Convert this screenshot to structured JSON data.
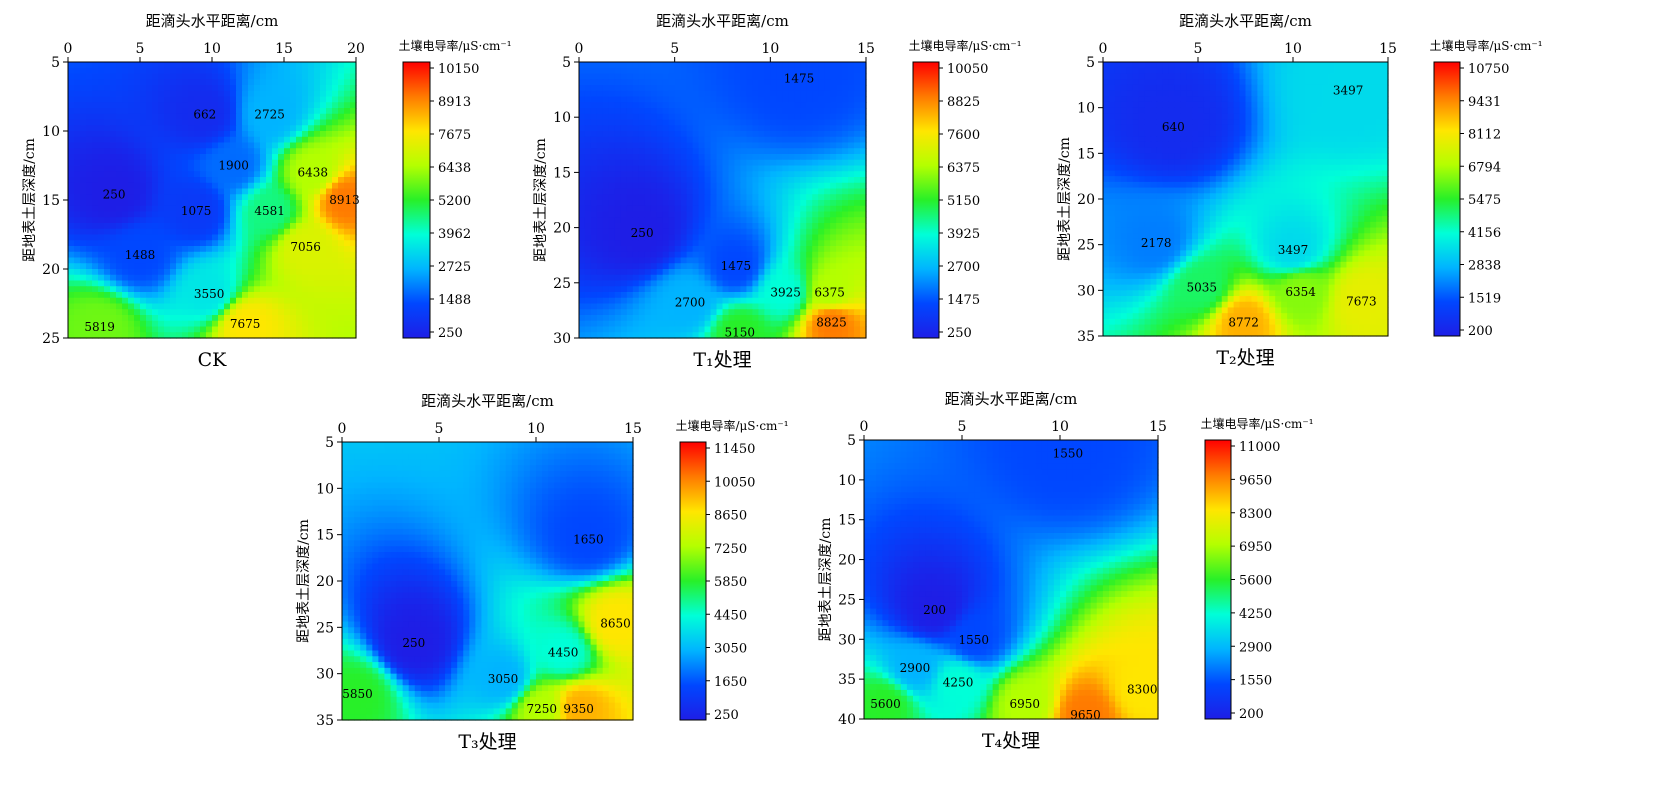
{
  "chart_data": [
    {
      "type": "heatmap",
      "panel_label": "CK",
      "xlabel": "距滴头水平距离/cm",
      "ylabel": "距地表土层深度/cm",
      "colorbar_label": "土壤电导率/μS·cm⁻¹",
      "x_ticks": [
        0,
        5,
        10,
        15,
        20
      ],
      "y_ticks": [
        5,
        10,
        15,
        20,
        25
      ],
      "xlim": [
        0,
        20
      ],
      "ylim": [
        5,
        25
      ],
      "colorbar_ticks": [
        10150,
        8913,
        7675,
        6438,
        5200,
        3962,
        2725,
        1488,
        250
      ],
      "colorbar_range": [
        250,
        10150
      ],
      "contour_labels": [
        {
          "value": 662,
          "x": 9.5,
          "y": 8.8
        },
        {
          "value": 2725,
          "x": 14,
          "y": 8.8
        },
        {
          "value": 1900,
          "x": 11.5,
          "y": 12.5
        },
        {
          "value": 250,
          "x": 3.2,
          "y": 14.6
        },
        {
          "value": 6438,
          "x": 17,
          "y": 13
        },
        {
          "value": 8913,
          "x": 19.2,
          "y": 15
        },
        {
          "value": 1075,
          "x": 8.9,
          "y": 15.8
        },
        {
          "value": 4581,
          "x": 14,
          "y": 15.8
        },
        {
          "value": 7056,
          "x": 16.5,
          "y": 18.4
        },
        {
          "value": 1488,
          "x": 5,
          "y": 19
        },
        {
          "value": 3550,
          "x": 9.8,
          "y": 21.8
        },
        {
          "value": 5819,
          "x": 2.2,
          "y": 24.2
        },
        {
          "value": 7675,
          "x": 12.3,
          "y": 24
        }
      ]
    },
    {
      "type": "heatmap",
      "panel_label": "T₁处理",
      "xlabel": "距滴头水平距离/cm",
      "ylabel": "距地表土层深度/cm",
      "colorbar_label": "土壤电导率/μS·cm⁻¹",
      "x_ticks": [
        0,
        5,
        10,
        15
      ],
      "y_ticks": [
        5,
        10,
        15,
        20,
        25,
        30
      ],
      "xlim": [
        0,
        15
      ],
      "ylim": [
        5,
        30
      ],
      "colorbar_ticks": [
        10050,
        8825,
        7600,
        6375,
        5150,
        3925,
        2700,
        1475,
        250
      ],
      "colorbar_range": [
        250,
        10050
      ],
      "contour_labels": [
        {
          "value": 1475,
          "x": 11.5,
          "y": 6.5
        },
        {
          "value": 250,
          "x": 3.3,
          "y": 20.5
        },
        {
          "value": 1475,
          "x": 8.2,
          "y": 23.5
        },
        {
          "value": 2700,
          "x": 5.8,
          "y": 26.8
        },
        {
          "value": 3925,
          "x": 10.8,
          "y": 25.9
        },
        {
          "value": 6375,
          "x": 13.1,
          "y": 25.9
        },
        {
          "value": 5150,
          "x": 8.4,
          "y": 29.5
        },
        {
          "value": 8825,
          "x": 13.2,
          "y": 28.6
        }
      ]
    },
    {
      "type": "heatmap",
      "panel_label": "T₂处理",
      "xlabel": "距滴头水平距离/cm",
      "ylabel": "距地表土层深度/cm",
      "colorbar_label": "土壤电导率/μS·cm⁻¹",
      "x_ticks": [
        0,
        5,
        10,
        15
      ],
      "y_ticks": [
        5,
        10,
        15,
        20,
        25,
        30,
        35
      ],
      "xlim": [
        0,
        15
      ],
      "ylim": [
        5,
        35
      ],
      "colorbar_ticks": [
        10750,
        9431,
        8112,
        6794,
        5475,
        4156,
        2838,
        1519,
        200
      ],
      "colorbar_range": [
        200,
        10750
      ],
      "contour_labels": [
        {
          "value": 3497,
          "x": 12.9,
          "y": 8.1
        },
        {
          "value": 640,
          "x": 3.7,
          "y": 12.1
        },
        {
          "value": 2178,
          "x": 2.8,
          "y": 24.8
        },
        {
          "value": 3497,
          "x": 10,
          "y": 25.6
        },
        {
          "value": 5035,
          "x": 5.2,
          "y": 29.7
        },
        {
          "value": 6354,
          "x": 10.4,
          "y": 30.2
        },
        {
          "value": 7673,
          "x": 13.6,
          "y": 31.2
        },
        {
          "value": 8772,
          "x": 7.4,
          "y": 33.5
        }
      ]
    },
    {
      "type": "heatmap",
      "panel_label": "T₃处理",
      "xlabel": "距滴头水平距离/cm",
      "ylabel": "距地表土层深度/cm",
      "colorbar_label": "土壤电导率/μS·cm⁻¹",
      "x_ticks": [
        0,
        5,
        10,
        15
      ],
      "y_ticks": [
        5,
        10,
        15,
        20,
        25,
        30,
        35
      ],
      "xlim": [
        0,
        15
      ],
      "ylim": [
        5,
        35
      ],
      "colorbar_ticks": [
        11450,
        10050,
        8650,
        7250,
        5850,
        4450,
        3050,
        1650,
        250
      ],
      "colorbar_range": [
        250,
        11450
      ],
      "contour_labels": [
        {
          "value": 1650,
          "x": 12.7,
          "y": 15.5
        },
        {
          "value": 250,
          "x": 3.7,
          "y": 26.7
        },
        {
          "value": 4450,
          "x": 11.4,
          "y": 27.7
        },
        {
          "value": 8650,
          "x": 14.1,
          "y": 24.6
        },
        {
          "value": 3050,
          "x": 8.3,
          "y": 30.6
        },
        {
          "value": 5850,
          "x": 0.8,
          "y": 32.2
        },
        {
          "value": 7250,
          "x": 10.3,
          "y": 33.8
        },
        {
          "value": 9350,
          "x": 12.2,
          "y": 33.8
        }
      ]
    },
    {
      "type": "heatmap",
      "panel_label": "T₄处理",
      "xlabel": "距滴头水平距离/cm",
      "ylabel": "距地表土层深度/cm",
      "colorbar_label": "土壤电导率/μS·cm⁻¹",
      "x_ticks": [
        0,
        5,
        10,
        15
      ],
      "y_ticks": [
        5,
        10,
        15,
        20,
        25,
        30,
        35,
        40
      ],
      "xlim": [
        0,
        15
      ],
      "ylim": [
        5,
        40
      ],
      "colorbar_ticks": [
        11000,
        9650,
        8300,
        6950,
        5600,
        4250,
        2900,
        1550,
        200
      ],
      "colorbar_range": [
        200,
        11000
      ],
      "contour_labels": [
        {
          "value": 1550,
          "x": 10.4,
          "y": 6.7
        },
        {
          "value": 200,
          "x": 3.6,
          "y": 26.3
        },
        {
          "value": 1550,
          "x": 5.6,
          "y": 30.1
        },
        {
          "value": 2900,
          "x": 2.6,
          "y": 33.6
        },
        {
          "value": 4250,
          "x": 4.8,
          "y": 35.4
        },
        {
          "value": 8300,
          "x": 14.2,
          "y": 36.3
        },
        {
          "value": 5600,
          "x": 1.1,
          "y": 38.1
        },
        {
          "value": 6950,
          "x": 8.2,
          "y": 38.1
        },
        {
          "value": 9650,
          "x": 11.3,
          "y": 39.5
        }
      ]
    }
  ]
}
